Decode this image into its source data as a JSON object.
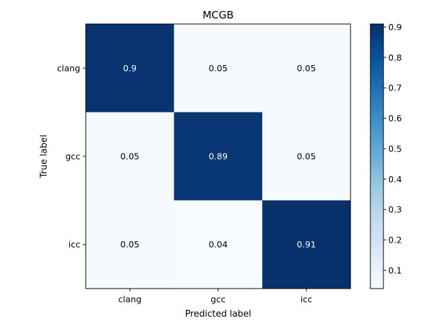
{
  "chart_data": {
    "type": "heatmap",
    "title": "MCGB",
    "xlabel": "Predicted label",
    "ylabel": "True label",
    "x_categories": [
      "clang",
      "gcc",
      "icc"
    ],
    "y_categories": [
      "clang",
      "gcc",
      "icc"
    ],
    "values": [
      [
        0.9,
        0.05,
        0.05
      ],
      [
        0.05,
        0.89,
        0.05
      ],
      [
        0.05,
        0.04,
        0.91
      ]
    ],
    "cell_labels": [
      [
        "0.9",
        "0.05",
        "0.05"
      ],
      [
        "0.05",
        "0.89",
        "0.05"
      ],
      [
        "0.05",
        "0.04",
        "0.91"
      ]
    ],
    "colormap": "Blues",
    "colorbar": {
      "min": 0.04,
      "max": 0.91,
      "ticks": [
        0.1,
        0.2,
        0.3,
        0.4,
        0.5,
        0.6,
        0.7,
        0.8,
        0.9
      ],
      "tick_labels": [
        "0.1",
        "0.2",
        "0.3",
        "0.4",
        "0.5",
        "0.6",
        "0.7",
        "0.8",
        "0.9"
      ],
      "position": "right"
    },
    "grid": false
  }
}
